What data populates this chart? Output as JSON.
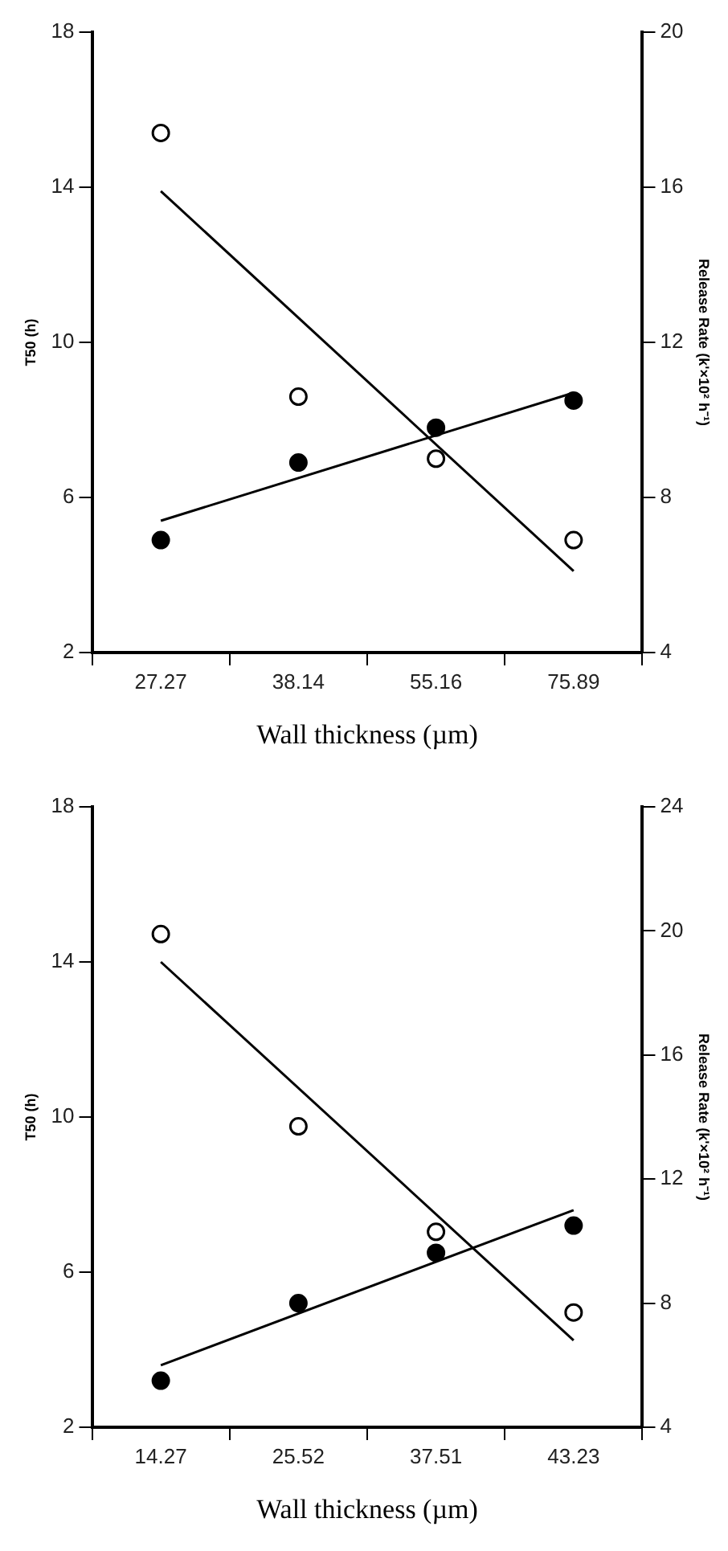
{
  "chart_data": [
    {
      "type": "scatter",
      "categories": [
        "27.27",
        "38.14",
        "55.16",
        "75.89"
      ],
      "xlabel": "Wall thickness (µm)",
      "ylabel": "T50 (h)",
      "y2label": "Release Rate (k'×10² h⁻¹)",
      "ylim": [
        2,
        18
      ],
      "yticks": [
        2,
        6,
        10,
        14,
        18
      ],
      "y2lim": [
        4,
        20
      ],
      "y2ticks": [
        4,
        8,
        12,
        16,
        20
      ],
      "grid": false,
      "legend": false,
      "series": [
        {
          "type": "scatter",
          "color": "#000000",
          "marker": "circle",
          "values": [
            4.9,
            6.9,
            7.8,
            8.5
          ]
        },
        {
          "type": "scatter",
          "color": "#000000",
          "colors": [
            "#ffffff",
            "#ffffff",
            "#ffffff",
            "#ffffff"
          ],
          "marker": "circle",
          "axis": "y2",
          "values": [
            17.4,
            10.6,
            9.0,
            6.9
          ]
        },
        {
          "type": "line",
          "color": "#000000",
          "marker": "none",
          "line_style": "solid",
          "x": [
            "27.27",
            "75.89"
          ],
          "values": [
            5.4,
            8.7
          ]
        },
        {
          "type": "line",
          "color": "#000000",
          "marker": "none",
          "line_style": "solid",
          "axis": "y2",
          "x": [
            "27.27",
            "75.89"
          ],
          "values": [
            15.9,
            6.1
          ]
        }
      ]
    },
    {
      "type": "scatter",
      "categories": [
        "14.27",
        "25.52",
        "37.51",
        "43.23"
      ],
      "xlabel": "Wall thickness (µm)",
      "ylabel": "T50 (h)",
      "y2label": "Release Rate (k'×10² h⁻¹)",
      "ylim": [
        2,
        18
      ],
      "yticks": [
        2,
        6,
        10,
        14,
        18
      ],
      "y2lim": [
        4,
        24
      ],
      "y2ticks": [
        4,
        8,
        12,
        16,
        20,
        24
      ],
      "grid": false,
      "legend": false,
      "series": [
        {
          "type": "scatter",
          "color": "#000000",
          "marker": "circle",
          "values": [
            3.2,
            5.2,
            6.5,
            7.2
          ]
        },
        {
          "type": "scatter",
          "color": "#000000",
          "colors": [
            "#ffffff",
            "#ffffff",
            "#ffffff",
            "#ffffff"
          ],
          "marker": "circle",
          "axis": "y2",
          "values": [
            19.9,
            13.7,
            10.3,
            7.7
          ]
        },
        {
          "type": "line",
          "color": "#000000",
          "marker": "none",
          "line_style": "solid",
          "x": [
            "14.27",
            "43.23"
          ],
          "values": [
            3.6,
            7.6
          ]
        },
        {
          "type": "line",
          "color": "#000000",
          "marker": "none",
          "line_style": "solid",
          "axis": "y2",
          "x": [
            "14.27",
            "43.23"
          ],
          "values": [
            19.0,
            6.8
          ]
        }
      ]
    }
  ]
}
